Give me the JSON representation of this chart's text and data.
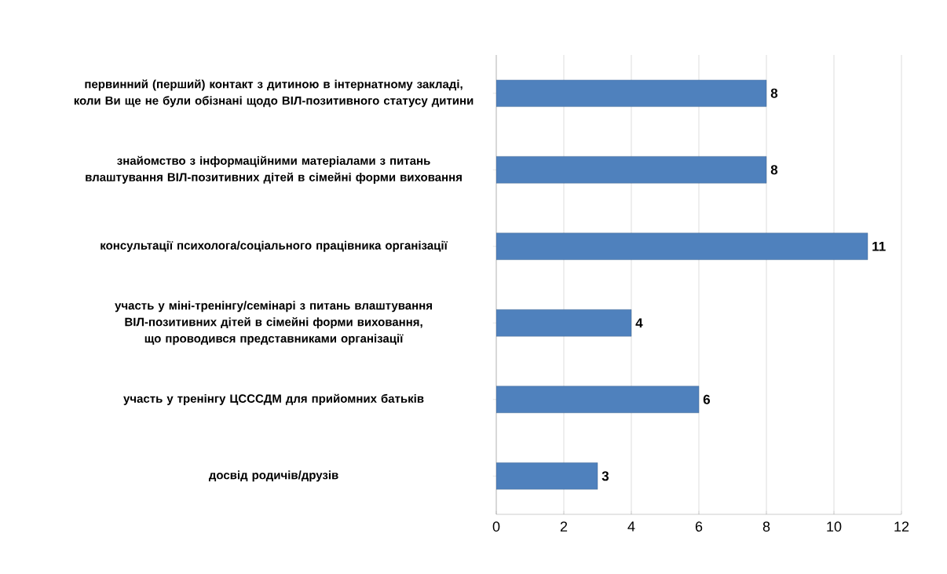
{
  "chart_data": {
    "type": "bar",
    "orientation": "horizontal",
    "categories": [
      "первинний (перший) контакт з дитиною в інтернатному закладі, коли Ви ще не були обізнані щодо ВІЛ-позитивного статусу дитини",
      "знайомство з інформаційними матеріалами з питань влаштування ВІЛ-позитивних дітей в сімейні форми виховання",
      "консультації  психолога/соціального працівника організації",
      "участь у міні-тренінгу/семінарі з питань влаштування ВІЛ-позитивних  дітей в  сімейні форми виховання, що проводився представниками організації",
      "участь у тренінгу ЦСССДМ для прийомних батьків",
      "досвід родичів/друзів"
    ],
    "values": [
      8,
      8,
      11,
      4,
      6,
      3
    ],
    "color": "#4f81bd",
    "xlim": [
      0,
      12
    ],
    "xticks": [
      0,
      2,
      4,
      6,
      8,
      10,
      12
    ],
    "grid": "x",
    "data_labels": true
  }
}
